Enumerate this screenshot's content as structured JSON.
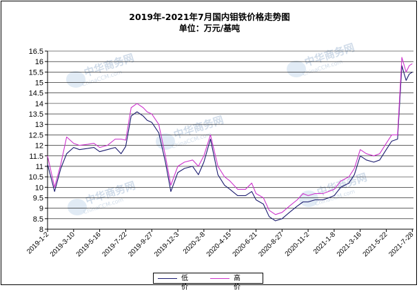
{
  "chart_data": {
    "type": "line",
    "title": "2019年-2021年7月国内钼铁价格走势图",
    "subtitle": "单位：万元/基吨",
    "ylim": [
      8,
      16.5
    ],
    "yticks": [
      "8",
      "8.5",
      "9",
      "9.5",
      "10",
      "10.5",
      "11",
      "11.5",
      "12",
      "12.5",
      "13",
      "13.5",
      "14",
      "14.5",
      "15",
      "15.5",
      "16",
      "16.5"
    ],
    "xticks": [
      "2019-1-2",
      "2019-3-10",
      "2019-5-16",
      "2019-7-22",
      "2019-9-27",
      "2019-12-3",
      "2020-2-8",
      "2020-4-15",
      "2020-6-21",
      "2020-8-27",
      "2020-11-2",
      "2021-1-8",
      "2021-3-16",
      "2021-5-22",
      "2021-7-28"
    ],
    "x": [
      "2019-1-2",
      "2019-1-20",
      "2019-2-5",
      "2019-2-20",
      "2019-3-10",
      "2019-3-25",
      "2019-4-15",
      "2019-5-1",
      "2019-5-16",
      "2019-6-5",
      "2019-6-25",
      "2019-7-10",
      "2019-7-22",
      "2019-8-5",
      "2019-8-20",
      "2019-9-5",
      "2019-9-15",
      "2019-9-27",
      "2019-10-15",
      "2019-11-1",
      "2019-11-15",
      "2019-12-3",
      "2019-12-20",
      "2020-1-10",
      "2020-1-25",
      "2020-2-8",
      "2020-2-25",
      "2020-3-15",
      "2020-4-1",
      "2020-4-15",
      "2020-5-5",
      "2020-5-25",
      "2020-6-10",
      "2020-6-21",
      "2020-7-10",
      "2020-7-25",
      "2020-8-10",
      "2020-8-27",
      "2020-9-15",
      "2020-10-5",
      "2020-10-20",
      "2020-11-2",
      "2020-11-20",
      "2020-12-10",
      "2020-12-25",
      "2021-1-8",
      "2021-1-25",
      "2021-2-15",
      "2021-3-1",
      "2021-3-16",
      "2021-4-1",
      "2021-4-20",
      "2021-5-5",
      "2021-5-22",
      "2021-6-5",
      "2021-6-20",
      "2021-7-1",
      "2021-7-12",
      "2021-7-20",
      "2021-7-28"
    ],
    "series": [
      {
        "name": "低价",
        "color": "#1a1a6e",
        "values": [
          11.1,
          9.8,
          10.9,
          11.6,
          11.9,
          11.8,
          11.85,
          11.9,
          11.7,
          11.8,
          11.9,
          11.6,
          11.95,
          13.4,
          13.6,
          13.4,
          13.2,
          13.1,
          12.6,
          11.2,
          9.8,
          10.7,
          10.9,
          11.0,
          10.6,
          11.2,
          12.3,
          10.6,
          10.1,
          9.9,
          9.6,
          9.6,
          9.8,
          9.4,
          9.2,
          8.6,
          8.4,
          8.5,
          8.8,
          9.1,
          9.3,
          9.3,
          9.4,
          9.4,
          9.5,
          9.6,
          10.0,
          10.2,
          10.6,
          11.5,
          11.3,
          11.2,
          11.3,
          11.8,
          12.2,
          12.3,
          15.8,
          15.1,
          15.4,
          15.5
        ]
      },
      {
        "name": "高价",
        "color": "#cc33cc",
        "values": [
          11.5,
          10.0,
          11.1,
          12.4,
          12.1,
          12.0,
          12.05,
          12.1,
          11.9,
          12.0,
          12.3,
          12.3,
          12.25,
          13.8,
          14.0,
          13.8,
          13.6,
          13.5,
          13.0,
          11.5,
          10.1,
          11.0,
          11.2,
          11.3,
          11.0,
          11.5,
          12.5,
          11.0,
          10.5,
          10.3,
          9.9,
          9.9,
          10.2,
          9.7,
          9.5,
          8.9,
          8.7,
          8.8,
          9.1,
          9.4,
          9.7,
          9.6,
          9.7,
          9.7,
          9.8,
          9.9,
          10.3,
          10.5,
          10.9,
          11.8,
          11.6,
          11.5,
          11.6,
          12.1,
          12.5,
          12.5,
          16.2,
          15.5,
          15.8,
          15.9
        ]
      }
    ],
    "grid": true,
    "legend": "bottom-center"
  },
  "watermark": {
    "text_cn": "中华商务网",
    "text_en": "ChinaCCM.com"
  }
}
